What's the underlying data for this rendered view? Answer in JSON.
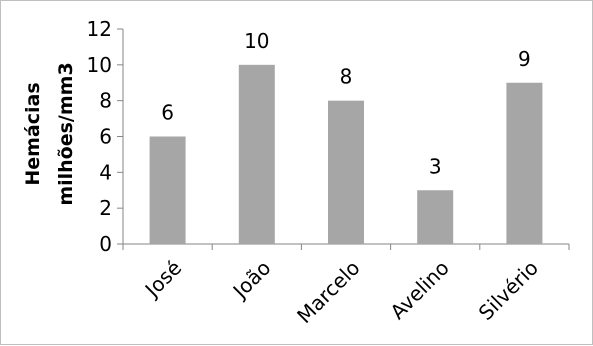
{
  "chart_data": {
    "type": "bar",
    "categories": [
      "José",
      "João",
      "Marcelo",
      "Avelino",
      "Silvério"
    ],
    "series": [
      {
        "values": [
          6,
          10,
          8,
          3,
          9
        ],
        "color": "#a6a6a6"
      }
    ],
    "data_labels": [
      "6",
      "10",
      "8",
      "3",
      "9"
    ],
    "title": "",
    "xlabel": "",
    "ylabel_lines": [
      "Hemácias",
      "milhões/mm3"
    ],
    "ylim": [
      0,
      12
    ],
    "y_ticks": [
      0,
      2,
      4,
      6,
      8,
      10,
      12
    ],
    "grid": false,
    "legend": "none",
    "colors": {
      "bar": "#a6a6a6",
      "axis": "#868686",
      "border": "#bfbfbf",
      "text": "#000000"
    }
  }
}
